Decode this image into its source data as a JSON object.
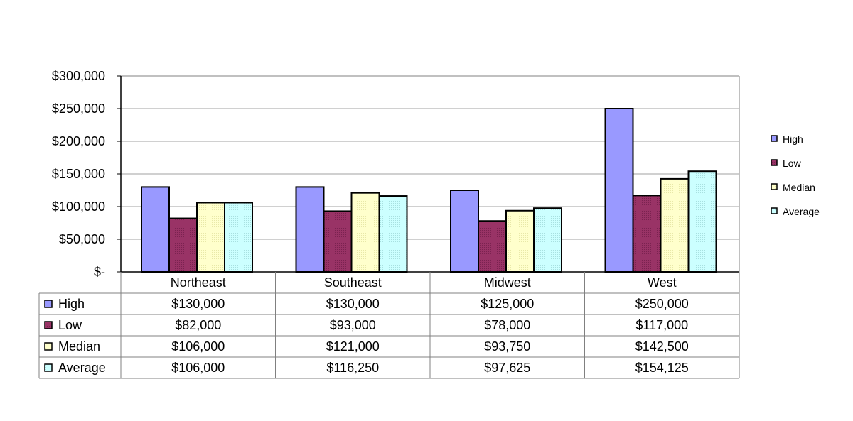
{
  "chart_data": {
    "type": "bar",
    "title": "",
    "xlabel": "",
    "ylabel": "",
    "ylim": [
      0,
      300000
    ],
    "yticks": [
      0,
      50000,
      100000,
      150000,
      200000,
      250000,
      300000
    ],
    "ytick_labels": [
      "$-",
      "$50,000",
      "$100,000",
      "$150,000",
      "$200,000",
      "$250,000",
      "$300,000"
    ],
    "grid": true,
    "legend_position": "right",
    "data_table": true,
    "categories": [
      "Northeast",
      "Southeast",
      "Midwest",
      "West"
    ],
    "series": [
      {
        "name": "High",
        "color": "#9999ff",
        "values": [
          130000,
          130000,
          125000,
          250000
        ],
        "labels": [
          "$130,000",
          "$130,000",
          "$125,000",
          "$250,000"
        ]
      },
      {
        "name": "Low",
        "color": "#993366",
        "values": [
          82000,
          93000,
          78000,
          117000
        ],
        "labels": [
          "$82,000",
          "$93,000",
          "$78,000",
          "$117,000"
        ]
      },
      {
        "name": "Median",
        "color": "#ffffcc",
        "values": [
          106000,
          121000,
          93750,
          142500
        ],
        "labels": [
          "$106,000",
          "$121,000",
          "$93,750",
          "$142,500"
        ]
      },
      {
        "name": "Average",
        "color": "#ccffff",
        "values": [
          106000,
          116250,
          97625,
          154125
        ],
        "labels": [
          "$106,000",
          "$116,250",
          "$97,625",
          "$154,125"
        ]
      }
    ]
  }
}
